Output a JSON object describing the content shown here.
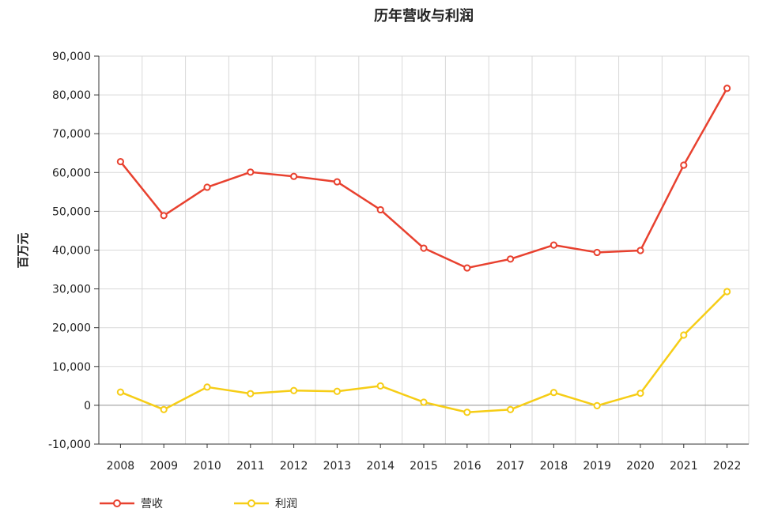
{
  "chart_data": {
    "type": "line",
    "title": "历年营收与利润",
    "xlabel": "",
    "ylabel": "百万元",
    "categories": [
      "2008",
      "2009",
      "2010",
      "2011",
      "2012",
      "2013",
      "2014",
      "2015",
      "2016",
      "2017",
      "2018",
      "2019",
      "2020",
      "2021",
      "2022"
    ],
    "series": [
      {
        "name": "营收",
        "color": "#e8412f",
        "values": [
          62800,
          48900,
          56200,
          60100,
          59000,
          57600,
          50400,
          40500,
          35400,
          37700,
          41300,
          39400,
          39900,
          61900,
          81700
        ]
      },
      {
        "name": "利润",
        "color": "#f6cd16",
        "values": [
          3400,
          -1100,
          4700,
          3000,
          3800,
          3600,
          5000,
          800,
          -1800,
          -1100,
          3300,
          -100,
          3100,
          18100,
          29300
        ]
      }
    ],
    "ylim": [
      -10000,
      90000
    ],
    "yticks": [
      -10000,
      0,
      10000,
      20000,
      30000,
      40000,
      50000,
      60000,
      70000,
      80000,
      90000
    ],
    "ytick_labels": [
      "-10,000",
      "0",
      "10,000",
      "20,000",
      "30,000",
      "40,000",
      "50,000",
      "60,000",
      "70,000",
      "80,000",
      "90,000"
    ],
    "grid": true,
    "legend_position": "bottom-left"
  }
}
